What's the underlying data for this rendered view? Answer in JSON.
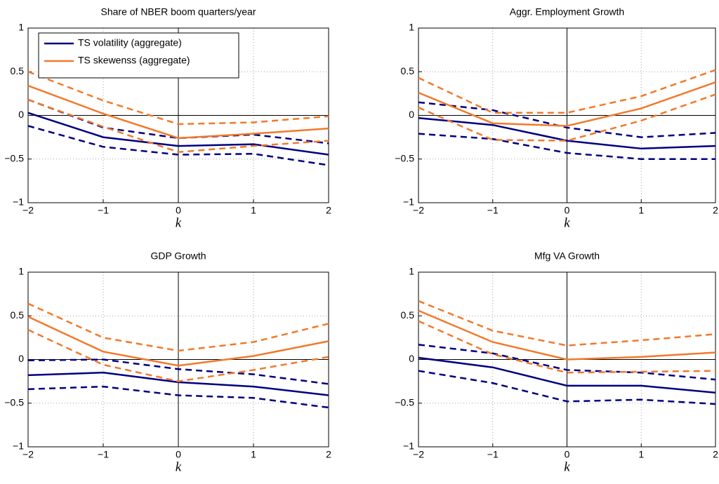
{
  "chart_data": [
    {
      "type": "line",
      "title": "Share of NBER boom quarters/year",
      "xlabel": "k",
      "x": [
        -2,
        -1,
        0,
        1,
        2
      ],
      "xlim": [
        -2,
        2
      ],
      "ylim": [
        -1,
        1
      ],
      "xticks": [
        {
          "value": -2,
          "label": "−2"
        },
        {
          "value": -1,
          "label": "−1"
        },
        0,
        1,
        2
      ],
      "yticks": [
        {
          "value": -1,
          "label": "−1"
        },
        {
          "value": -0.5,
          "label": "−0.5"
        },
        0,
        0.5,
        1
      ],
      "grid": true,
      "legend": "upper left",
      "series": [
        {
          "name": "TS volatility (aggregate)",
          "color": "#000080",
          "values": [
            0.03,
            -0.25,
            -0.35,
            -0.33,
            -0.45
          ],
          "upper": [
            0.18,
            -0.14,
            -0.26,
            -0.22,
            -0.32
          ],
          "lower": [
            -0.12,
            -0.36,
            -0.45,
            -0.44,
            -0.57
          ]
        },
        {
          "name": "TS skewenss (aggregate)",
          "color": "#f2792b",
          "values": [
            0.34,
            0.02,
            -0.26,
            -0.21,
            -0.15
          ],
          "upper": [
            0.5,
            0.17,
            -0.1,
            -0.08,
            -0.01
          ],
          "lower": [
            0.18,
            -0.13,
            -0.42,
            -0.35,
            -0.29
          ]
        }
      ]
    },
    {
      "type": "line",
      "title": "Aggr. Employment Growth",
      "xlabel": "k",
      "x": [
        -2,
        -1,
        0,
        1,
        2
      ],
      "xlim": [
        -2,
        2
      ],
      "ylim": [
        -1,
        1
      ],
      "xticks": [
        {
          "value": -2,
          "label": "−2"
        },
        {
          "value": -1,
          "label": "−1"
        },
        0,
        1,
        2
      ],
      "yticks": [
        {
          "value": -1,
          "label": "−1"
        },
        {
          "value": -0.5,
          "label": "−0.5"
        },
        0,
        0.5,
        1
      ],
      "grid": true,
      "series": [
        {
          "color": "#000080",
          "values": [
            -0.03,
            -0.11,
            -0.29,
            -0.38,
            -0.35
          ],
          "upper": [
            0.15,
            0.06,
            -0.14,
            -0.25,
            -0.2
          ],
          "lower": [
            -0.21,
            -0.27,
            -0.43,
            -0.5,
            -0.5
          ]
        },
        {
          "color": "#f2792b",
          "values": [
            0.26,
            -0.09,
            -0.12,
            0.08,
            0.38
          ],
          "upper": [
            0.43,
            0.03,
            0.03,
            0.22,
            0.52
          ],
          "lower": [
            0.09,
            -0.28,
            -0.29,
            -0.06,
            0.24
          ]
        }
      ]
    },
    {
      "type": "line",
      "title": "GDP Growth",
      "xlabel": "k",
      "x": [
        -2,
        -1,
        0,
        1,
        2
      ],
      "xlim": [
        -2,
        2
      ],
      "ylim": [
        -1,
        1
      ],
      "xticks": [
        {
          "value": -2,
          "label": "−2"
        },
        {
          "value": -1,
          "label": "−1"
        },
        0,
        1,
        2
      ],
      "yticks": [
        {
          "value": -1,
          "label": "−1"
        },
        {
          "value": -0.5,
          "label": "−0.5"
        },
        0,
        0.5,
        1
      ],
      "grid": true,
      "series": [
        {
          "color": "#000080",
          "values": [
            -0.18,
            -0.15,
            -0.26,
            -0.31,
            -0.41
          ],
          "upper": [
            -0.01,
            0.0,
            -0.11,
            -0.17,
            -0.28
          ],
          "lower": [
            -0.34,
            -0.31,
            -0.41,
            -0.44,
            -0.55
          ]
        },
        {
          "color": "#f2792b",
          "values": [
            0.49,
            0.09,
            -0.07,
            0.04,
            0.21
          ],
          "upper": [
            0.64,
            0.25,
            0.1,
            0.2,
            0.41
          ],
          "lower": [
            0.34,
            -0.06,
            -0.25,
            -0.12,
            0.03
          ]
        }
      ]
    },
    {
      "type": "line",
      "title": "Mfg VA Growth",
      "xlabel": "k",
      "x": [
        -2,
        -1,
        0,
        1,
        2
      ],
      "xlim": [
        -2,
        2
      ],
      "ylim": [
        -1,
        1
      ],
      "xticks": [
        {
          "value": -2,
          "label": "−2"
        },
        {
          "value": -1,
          "label": "−1"
        },
        0,
        1,
        2
      ],
      "yticks": [
        {
          "value": -1,
          "label": "−1"
        },
        {
          "value": -0.5,
          "label": "−0.5"
        },
        0,
        0.5,
        1
      ],
      "grid": true,
      "series": [
        {
          "color": "#000080",
          "values": [
            0.02,
            -0.09,
            -0.3,
            -0.3,
            -0.38
          ],
          "upper": [
            0.17,
            0.07,
            -0.12,
            -0.15,
            -0.23
          ],
          "lower": [
            -0.13,
            -0.27,
            -0.48,
            -0.46,
            -0.51
          ]
        },
        {
          "color": "#f2792b",
          "values": [
            0.56,
            0.2,
            0.0,
            0.03,
            0.08
          ],
          "upper": [
            0.67,
            0.33,
            0.16,
            0.22,
            0.29
          ],
          "lower": [
            0.44,
            0.06,
            -0.15,
            -0.14,
            -0.13
          ]
        }
      ]
    }
  ]
}
